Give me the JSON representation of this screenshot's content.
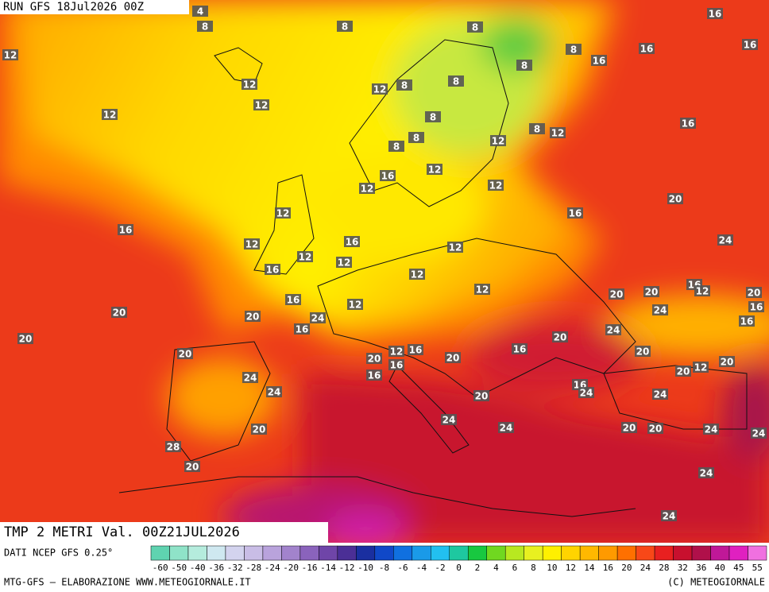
{
  "header": {
    "run": "RUN GFS 18Jul2026 00Z"
  },
  "title": "TMP 2 METRI Val. 00Z21JUL2026",
  "source": "DATI NCEP GFS 0.25°",
  "credit": "MTG-GFS — ELABORAZIONE WWW.METEOGIORNALE.IT",
  "copyright": "(C) METEOGIORNALE",
  "legend": {
    "values": [
      -60,
      -50,
      -40,
      -36,
      -32,
      -28,
      -24,
      -20,
      -16,
      -14,
      -12,
      -10,
      -8,
      -6,
      -4,
      -2,
      0,
      2,
      4,
      6,
      8,
      10,
      12,
      14,
      16,
      20,
      24,
      28,
      32,
      36,
      40,
      45,
      55
    ],
    "colors": [
      "#5fd3b0",
      "#8fe3c8",
      "#b5ecdd",
      "#cfe8f0",
      "#d3d3ee",
      "#c9bde6",
      "#b9a3dc",
      "#a283cc",
      "#8a63bc",
      "#6f45a8",
      "#4b2f96",
      "#1a2fa0",
      "#1048c8",
      "#1070e0",
      "#1a9ae8",
      "#22c0f0",
      "#1ec8a0",
      "#18c840",
      "#70d820",
      "#b8e820",
      "#e8f020",
      "#fff000",
      "#ffd400",
      "#ffb800",
      "#ff9a00",
      "#ff7000",
      "#f84818",
      "#e82020",
      "#c8102e",
      "#b0104a",
      "#c01898",
      "#e020c0",
      "#f070e0"
    ]
  },
  "contour_labels": [
    4,
    8,
    8,
    8,
    16,
    12,
    12,
    12,
    12,
    12,
    8,
    8,
    8,
    8,
    16,
    16,
    16,
    8,
    8,
    8,
    8,
    12,
    12,
    16,
    16,
    12,
    12,
    12,
    20,
    12,
    16,
    16,
    24,
    16,
    12,
    12,
    12,
    12,
    16,
    12,
    16,
    12,
    12,
    20,
    20,
    20,
    16,
    12,
    24,
    16,
    20,
    20,
    16,
    16,
    24,
    20,
    20,
    16,
    12,
    16,
    20,
    20,
    20,
    20,
    16,
    20,
    20,
    12,
    16,
    24,
    16,
    24,
    24,
    20,
    24,
    20,
    24,
    24,
    20,
    20,
    24,
    24,
    28,
    20,
    24,
    24,
    24
  ]
}
